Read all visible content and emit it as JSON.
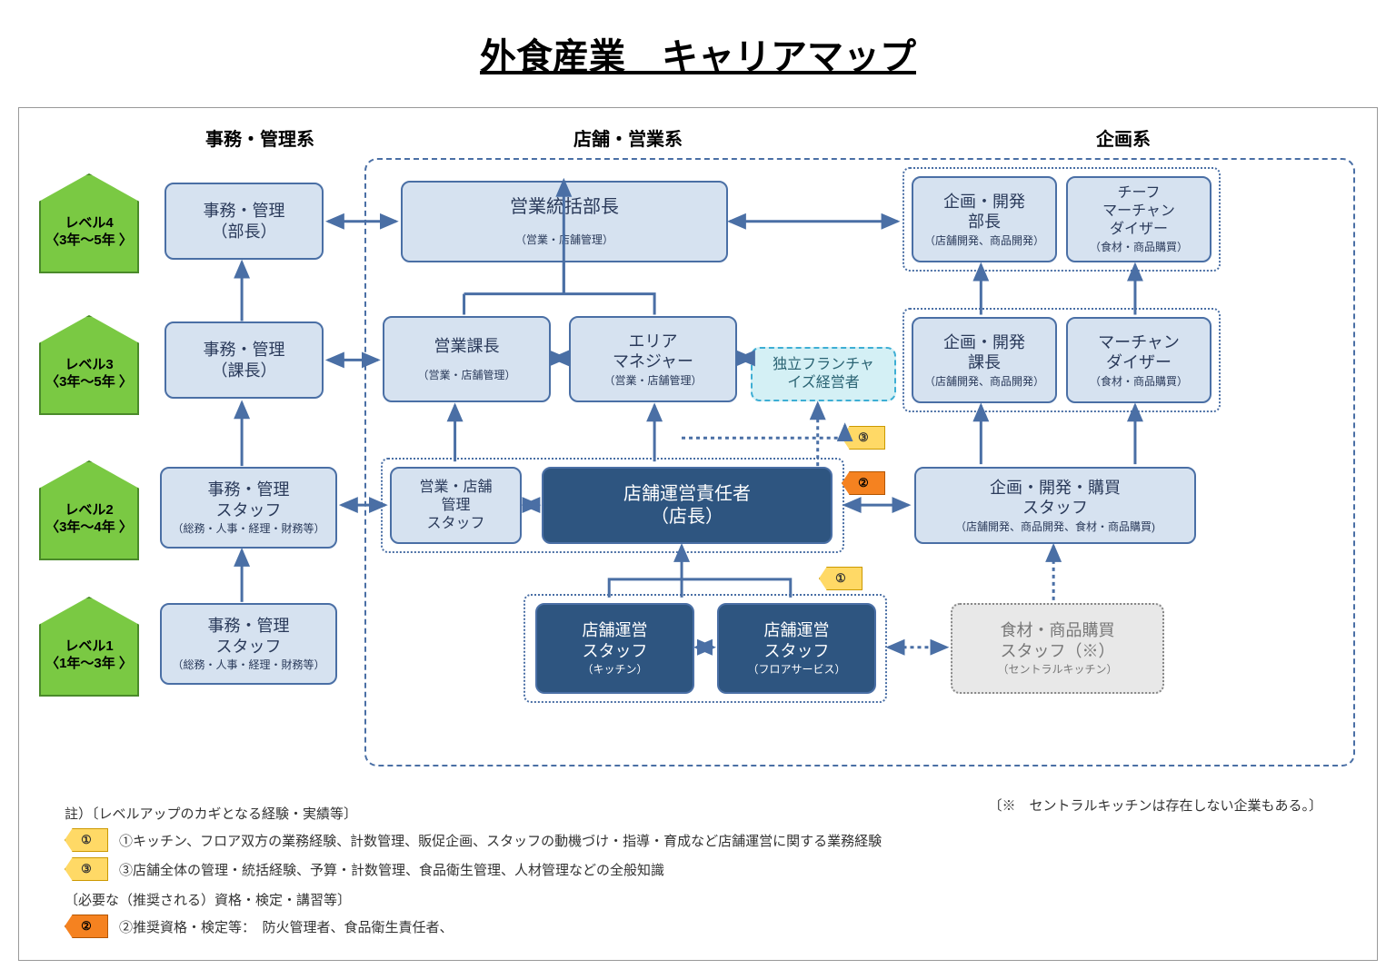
{
  "title": "外食産業　キャリアマップ",
  "columns": {
    "admin": "事務・管理系",
    "store": "店舗・営業系",
    "plan": "企画系"
  },
  "levels": [
    {
      "label": "レベル4",
      "years": "〈3年～5年 〉"
    },
    {
      "label": "レベル3",
      "years": "〈3年～5年 〉"
    },
    {
      "label": "レベル2",
      "years": "〈3年～4年 〉"
    },
    {
      "label": "レベル1",
      "years": "〈1年～3年 〉"
    }
  ],
  "nodes": {
    "admin_l4": {
      "main": "事務・管理\n（部長）",
      "sub": ""
    },
    "admin_l3": {
      "main": "事務・管理\n（課長）",
      "sub": ""
    },
    "admin_l2": {
      "main": "事務・管理\nスタッフ",
      "sub": "（総務・人事・経理・財務等）"
    },
    "admin_l1": {
      "main": "事務・管理\nスタッフ",
      "sub": "（総務・人事・経理・財務等）"
    },
    "sales_head": {
      "main": "営業統括部長",
      "sub": "（営業・店舗管理）"
    },
    "sales_kacho": {
      "main": "営業課長",
      "sub": "（営業・店舗管理）"
    },
    "area_mgr": {
      "main": "エリア\nマネジャー",
      "sub": "（営業・店舗管理）"
    },
    "franchise": {
      "main": "独立フランチャ\nイズ経営者",
      "sub": ""
    },
    "sales_staff": {
      "main": "営業・店舗\n管理\nスタッフ",
      "sub": ""
    },
    "store_manager": {
      "main": "店舗運営責任者\n（店長）",
      "sub": ""
    },
    "kitchen_staff": {
      "main": "店舗運営\nスタッフ",
      "sub": "（キッチン）"
    },
    "floor_staff": {
      "main": "店舗運営\nスタッフ",
      "sub": "（フロアサービス）"
    },
    "plan_bucho": {
      "main": "企画・開発\n部長",
      "sub": "（店舗開発、商品開発）"
    },
    "chief_md": {
      "main": "チーフ\nマーチャン\nダイザー",
      "sub": "（食材・商品購買）"
    },
    "plan_kacho": {
      "main": "企画・開発\n課長",
      "sub": "（店舗開発、商品開発）"
    },
    "md": {
      "main": "マーチャン\nダイザー",
      "sub": "（食材・商品購買）"
    },
    "plan_staff": {
      "main": "企画・開発・購買\nスタッフ",
      "sub": "（店舗開発、商品開発、食材・商品購買)"
    },
    "central_kitchen": {
      "main": "食材・商品購買\nスタッフ（※）",
      "sub": "（セントラルキッチン）"
    }
  },
  "flags": {
    "f1": "①",
    "f2": "②",
    "f3": "③"
  },
  "notes": {
    "heading1": "註）〔レベルアップのカギとなる経験・実績等〕",
    "right": "〔※　セントラルキッチンは存在しない企業もある。〕",
    "n1": "①キッチン、フロア双方の業務経験、計数管理、販促企画、スタッフの動機づけ・指導・育成など店舗運営に関する業務経験",
    "n3": "③店舗全体の管理・統括経験、予算・計数管理、食品衛生管理、人材管理などの全般知識",
    "heading2": "〔必要な（推奨される）資格・検定・講習等〕",
    "n2": "②推奨資格・検定等：　防火管理者、食品衛生責任者、"
  },
  "colors": {
    "blue": "#4a6fa5",
    "light": "#d6e2f0",
    "dark": "#2e5580",
    "green": "#7ac943",
    "yellow": "#ffd966",
    "orange": "#f58220"
  },
  "layout": {
    "level_y": [
      70,
      220,
      380,
      530
    ],
    "col_x": {
      "level": 10,
      "admin": 150,
      "store_a": 390,
      "store_b": 580,
      "store_c": 790,
      "plan_a": 970,
      "plan_b": 1130
    }
  }
}
